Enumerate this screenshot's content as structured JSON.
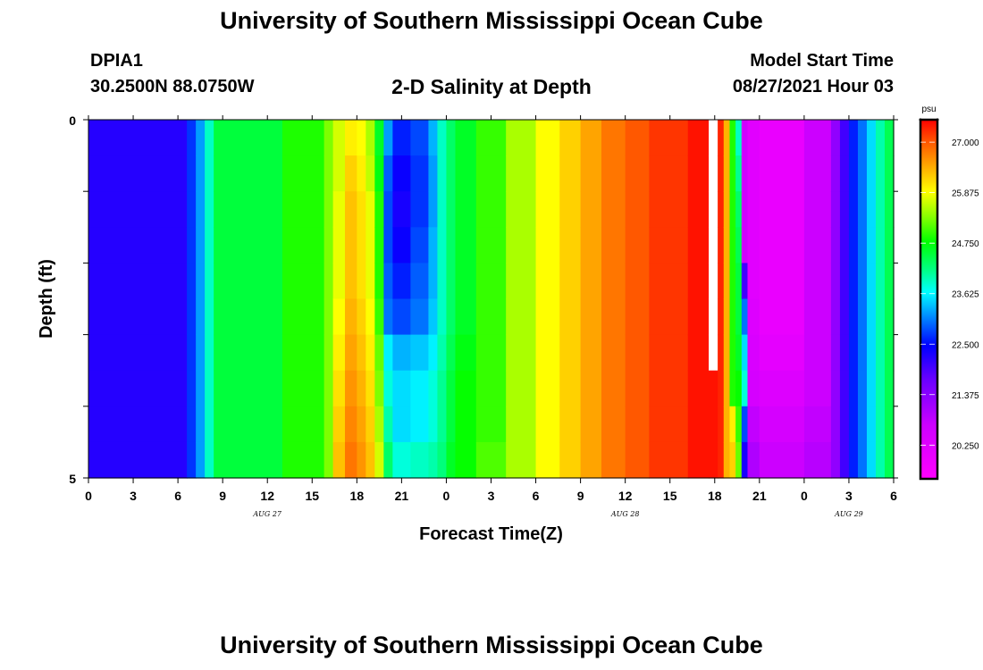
{
  "header": {
    "title": "University of Southern Mississippi Ocean Cube",
    "station_id": "DPIA1",
    "station_coords": "30.2500N  88.0750W",
    "chart_title": "2-D Salinity at Depth",
    "model_start_label": "Model Start Time",
    "model_start_value": "08/27/2021 Hour 03"
  },
  "footer": {
    "title": "University of Southern Mississippi Ocean Cube"
  },
  "chart_data": {
    "type": "heatmap",
    "title": "2-D Salinity at Depth",
    "xlabel": "Forecast Time(Z)",
    "ylabel": "Depth (ft)",
    "x_unit": "hours since 08/27/2021 00Z",
    "x_range": [
      0,
      54
    ],
    "y_range": [
      0,
      5
    ],
    "y_inverted": true,
    "x_tick_labels": [
      "0",
      "3",
      "6",
      "9",
      "12",
      "15",
      "18",
      "21",
      "0",
      "3",
      "6",
      "9",
      "12",
      "15",
      "18",
      "21",
      "0",
      "3",
      "6"
    ],
    "y_tick_labels": [
      "0",
      "5"
    ],
    "date_labels": [
      {
        "label": "AUG 27",
        "hour": 12
      },
      {
        "label": "AUG 28",
        "hour": 36
      },
      {
        "label": "AUG 29",
        "hour": 51
      }
    ],
    "colorbar": {
      "unit": "psu",
      "min": 19.5,
      "max": 27.5,
      "tick_labels": [
        "27.000",
        "25.875",
        "24.750",
        "23.625",
        "22.500",
        "21.375",
        "20.250"
      ],
      "tick_values": [
        27.0,
        25.875,
        24.75,
        23.625,
        22.5,
        21.375,
        20.25
      ]
    },
    "depths": [
      0.25,
      0.75,
      1.25,
      1.75,
      2.25,
      2.75,
      3.25,
      3.75,
      4.25,
      4.75
    ],
    "columns": [
      {
        "x0": 0.0,
        "x1": 6.6,
        "v": [
          22.2,
          22.2,
          22.2,
          22.2,
          22.2,
          22.2,
          22.2,
          22.2,
          22.2,
          22.2
        ]
      },
      {
        "x0": 6.6,
        "x1": 7.2,
        "v": [
          22.7,
          22.7,
          22.7,
          22.7,
          22.7,
          22.7,
          22.7,
          22.7,
          22.7,
          22.7
        ]
      },
      {
        "x0": 7.2,
        "x1": 7.8,
        "v": [
          23.2,
          23.2,
          23.2,
          23.2,
          23.2,
          23.2,
          23.2,
          23.2,
          23.2,
          23.2
        ]
      },
      {
        "x0": 7.8,
        "x1": 8.4,
        "v": [
          23.9,
          23.9,
          23.9,
          23.9,
          23.9,
          23.9,
          23.9,
          23.9,
          23.9,
          23.9
        ]
      },
      {
        "x0": 8.4,
        "x1": 13.0,
        "v": [
          24.5,
          24.5,
          24.5,
          24.5,
          24.5,
          24.5,
          24.5,
          24.5,
          24.5,
          24.5
        ]
      },
      {
        "x0": 13.0,
        "x1": 15.8,
        "v": [
          24.9,
          24.9,
          24.9,
          24.9,
          24.9,
          24.9,
          24.9,
          24.9,
          24.9,
          24.9
        ]
      },
      {
        "x0": 15.8,
        "x1": 16.4,
        "v": [
          25.3,
          25.3,
          25.3,
          25.3,
          25.3,
          25.3,
          25.3,
          25.3,
          25.3,
          25.3
        ]
      },
      {
        "x0": 16.4,
        "x1": 17.2,
        "v": [
          25.7,
          25.7,
          25.8,
          25.8,
          25.8,
          25.9,
          26.0,
          26.1,
          26.2,
          26.3
        ]
      },
      {
        "x0": 17.2,
        "x1": 18.0,
        "v": [
          26.0,
          26.2,
          26.3,
          26.3,
          26.3,
          26.4,
          26.5,
          26.6,
          26.7,
          26.8
        ]
      },
      {
        "x0": 18.0,
        "x1": 18.6,
        "v": [
          25.9,
          26.0,
          26.1,
          26.1,
          26.1,
          26.2,
          26.3,
          26.4,
          26.5,
          26.6
        ]
      },
      {
        "x0": 18.6,
        "x1": 19.2,
        "v": [
          25.5,
          25.6,
          25.8,
          25.8,
          25.8,
          25.9,
          26.0,
          26.1,
          26.2,
          26.3
        ]
      },
      {
        "x0": 19.2,
        "x1": 19.8,
        "v": [
          24.6,
          24.7,
          24.9,
          24.9,
          24.9,
          25.0,
          25.2,
          25.3,
          25.5,
          25.7
        ]
      },
      {
        "x0": 19.8,
        "x1": 20.4,
        "v": [
          23.2,
          22.9,
          22.8,
          22.8,
          22.9,
          23.0,
          23.6,
          23.8,
          24.0,
          24.3
        ]
      },
      {
        "x0": 20.4,
        "x1": 21.6,
        "v": [
          22.6,
          22.4,
          22.3,
          22.4,
          22.6,
          22.8,
          23.3,
          23.5,
          23.5,
          23.8
        ]
      },
      {
        "x0": 21.6,
        "x1": 22.8,
        "v": [
          22.8,
          22.7,
          22.7,
          22.8,
          22.9,
          23.0,
          23.4,
          23.6,
          23.6,
          23.9
        ]
      },
      {
        "x0": 22.8,
        "x1": 23.4,
        "v": [
          23.3,
          23.2,
          23.2,
          23.3,
          23.3,
          23.4,
          23.6,
          23.8,
          23.8,
          24.0
        ]
      },
      {
        "x0": 23.4,
        "x1": 24.0,
        "v": [
          23.9,
          23.9,
          23.9,
          23.9,
          23.9,
          23.9,
          24.0,
          24.1,
          24.1,
          24.2
        ]
      },
      {
        "x0": 24.0,
        "x1": 24.6,
        "v": [
          24.3,
          24.3,
          24.3,
          24.3,
          24.3,
          24.3,
          24.4,
          24.5,
          24.5,
          24.6
        ]
      },
      {
        "x0": 24.6,
        "x1": 26.0,
        "v": [
          24.6,
          24.6,
          24.6,
          24.6,
          24.6,
          24.6,
          24.7,
          24.8,
          24.8,
          24.8
        ]
      },
      {
        "x0": 26.0,
        "x1": 28.0,
        "v": [
          25.0,
          25.0,
          25.0,
          25.0,
          25.0,
          25.0,
          25.0,
          25.0,
          25.0,
          25.1
        ]
      },
      {
        "x0": 28.0,
        "x1": 30.0,
        "v": [
          25.5,
          25.5,
          25.5,
          25.5,
          25.5,
          25.5,
          25.5,
          25.5,
          25.5,
          25.5
        ]
      },
      {
        "x0": 30.0,
        "x1": 31.6,
        "v": [
          25.9,
          25.9,
          25.9,
          25.9,
          25.9,
          25.9,
          25.9,
          25.9,
          25.9,
          25.9
        ]
      },
      {
        "x0": 31.6,
        "x1": 33.0,
        "v": [
          26.2,
          26.2,
          26.2,
          26.2,
          26.2,
          26.2,
          26.2,
          26.2,
          26.2,
          26.2
        ]
      },
      {
        "x0": 33.0,
        "x1": 34.4,
        "v": [
          26.5,
          26.5,
          26.5,
          26.5,
          26.5,
          26.5,
          26.5,
          26.5,
          26.5,
          26.5
        ]
      },
      {
        "x0": 34.4,
        "x1": 36.0,
        "v": [
          26.8,
          26.8,
          26.8,
          26.8,
          26.8,
          26.8,
          26.8,
          26.8,
          26.8,
          26.8
        ]
      },
      {
        "x0": 36.0,
        "x1": 37.6,
        "v": [
          27.0,
          27.0,
          27.0,
          27.0,
          27.0,
          27.0,
          27.0,
          27.0,
          27.0,
          27.0
        ]
      },
      {
        "x0": 37.6,
        "x1": 40.2,
        "v": [
          27.2,
          27.2,
          27.2,
          27.2,
          27.2,
          27.2,
          27.2,
          27.2,
          27.2,
          27.2
        ]
      },
      {
        "x0": 40.2,
        "x1": 41.6,
        "v": [
          27.4,
          27.4,
          27.4,
          27.4,
          27.4,
          27.4,
          27.4,
          27.4,
          27.4,
          27.4
        ]
      },
      {
        "x0": 41.6,
        "x1": 42.2,
        "v": [
          null,
          null,
          null,
          null,
          null,
          null,
          null,
          27.4,
          27.4,
          27.4
        ]
      },
      {
        "x0": 42.2,
        "x1": 42.6,
        "v": [
          27.3,
          27.3,
          27.3,
          27.3,
          27.3,
          27.3,
          27.3,
          27.3,
          27.3,
          27.3
        ]
      },
      {
        "x0": 42.6,
        "x1": 43.0,
        "v": [
          26.4,
          26.4,
          26.4,
          26.4,
          26.4,
          26.4,
          26.4,
          26.4,
          26.4,
          26.4
        ]
      },
      {
        "x0": 43.0,
        "x1": 43.4,
        "v": [
          24.9,
          24.9,
          24.9,
          24.9,
          24.9,
          24.9,
          24.9,
          24.9,
          26.0,
          26.2
        ]
      },
      {
        "x0": 43.4,
        "x1": 43.8,
        "v": [
          23.9,
          24.1,
          24.3,
          24.4,
          24.5,
          24.5,
          24.6,
          24.8,
          25.0,
          25.2
        ]
      },
      {
        "x0": 43.8,
        "x1": 44.2,
        "v": [
          20.6,
          20.6,
          20.6,
          20.6,
          22.0,
          23.0,
          23.5,
          23.8,
          22.8,
          22.3
        ]
      },
      {
        "x0": 44.2,
        "x1": 45.0,
        "v": [
          20.2,
          20.2,
          20.2,
          20.2,
          20.2,
          20.3,
          20.4,
          20.5,
          20.8,
          21.0
        ]
      },
      {
        "x0": 45.0,
        "x1": 48.0,
        "v": [
          20.0,
          20.0,
          20.0,
          20.0,
          20.0,
          20.0,
          20.1,
          20.3,
          20.5,
          20.7
        ]
      },
      {
        "x0": 48.0,
        "x1": 49.8,
        "v": [
          20.7,
          20.7,
          20.7,
          20.7,
          20.7,
          20.7,
          20.7,
          20.7,
          20.8,
          20.9
        ]
      },
      {
        "x0": 49.8,
        "x1": 50.4,
        "v": [
          21.3,
          21.3,
          21.3,
          21.3,
          21.3,
          21.3,
          21.3,
          21.3,
          21.3,
          21.3
        ]
      },
      {
        "x0": 50.4,
        "x1": 51.0,
        "v": [
          22.0,
          22.0,
          22.0,
          22.0,
          22.0,
          22.0,
          22.0,
          22.0,
          22.0,
          22.0
        ]
      },
      {
        "x0": 51.0,
        "x1": 51.6,
        "v": [
          22.6,
          22.6,
          22.6,
          22.6,
          22.6,
          22.6,
          22.6,
          22.6,
          22.6,
          22.6
        ]
      },
      {
        "x0": 51.6,
        "x1": 52.2,
        "v": [
          23.0,
          23.0,
          23.0,
          23.0,
          23.0,
          23.0,
          23.0,
          23.0,
          23.0,
          23.0
        ]
      },
      {
        "x0": 52.2,
        "x1": 52.8,
        "v": [
          23.5,
          23.5,
          23.5,
          23.5,
          23.5,
          23.5,
          23.5,
          23.5,
          23.5,
          23.5
        ]
      },
      {
        "x0": 52.8,
        "x1": 53.4,
        "v": [
          24.0,
          24.0,
          24.0,
          24.0,
          24.0,
          24.0,
          24.0,
          24.0,
          24.0,
          24.0
        ]
      },
      {
        "x0": 53.4,
        "x1": 54.0,
        "v": [
          24.4,
          24.4,
          24.4,
          24.4,
          24.4,
          24.4,
          24.4,
          24.4,
          24.4,
          24.4
        ]
      }
    ]
  }
}
